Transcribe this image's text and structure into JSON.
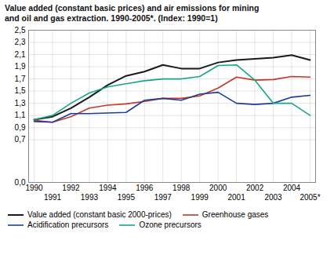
{
  "chart_data": {
    "type": "line",
    "title": "Value added (constant basic prices) and air emissions for mining",
    "subtitle": "and oil and gas extraction. 1990-2005*. (Index: 1990=1)",
    "x": [
      1990,
      1991,
      1992,
      1993,
      1994,
      1995,
      1996,
      1997,
      1998,
      1999,
      2000,
      2001,
      2002,
      2003,
      2004,
      2005
    ],
    "xlim": [
      1989.7,
      2005.3
    ],
    "xticks": [
      1990,
      1991,
      1992,
      1993,
      1994,
      1995,
      1996,
      1997,
      1998,
      1999,
      2000,
      2001,
      2002,
      2003,
      2004,
      {
        "value": 2005,
        "label": "2005*"
      }
    ],
    "ylim": [
      0.0,
      2.5
    ],
    "yticks": [
      {
        "value": 0.0,
        "label": "0,0"
      },
      {
        "value": 0.7,
        "label": "0,7"
      },
      {
        "value": 0.9,
        "label": "0,9"
      },
      {
        "value": 1.1,
        "label": "1,1"
      },
      {
        "value": 1.3,
        "label": "1,3"
      },
      {
        "value": 1.5,
        "label": "1,5"
      },
      {
        "value": 1.7,
        "label": "1,7"
      },
      {
        "value": 1.9,
        "label": "1,9"
      },
      {
        "value": 2.1,
        "label": "2,1"
      },
      {
        "value": 2.3,
        "label": "2,3"
      },
      {
        "value": 2.5,
        "label": "2,5"
      }
    ],
    "grid": true,
    "legend": "bottom",
    "series": [
      {
        "name": "Value added (constant basic 2000-prices)",
        "color": "#1a1a1a",
        "values": [
          1.03,
          1.08,
          1.22,
          1.4,
          1.6,
          1.75,
          1.82,
          1.93,
          1.87,
          1.87,
          1.97,
          2.01,
          2.03,
          2.05,
          2.09,
          2.01
        ]
      },
      {
        "name": "Greenhouse gases",
        "color": "#c0392b",
        "values": [
          1.02,
          0.99,
          1.08,
          1.22,
          1.27,
          1.29,
          1.33,
          1.38,
          1.38,
          1.42,
          1.55,
          1.73,
          1.68,
          1.69,
          1.74,
          1.73
        ]
      },
      {
        "name": "Acidification precursors",
        "color": "#1f3c99",
        "values": [
          1.0,
          0.99,
          1.13,
          1.13,
          1.14,
          1.15,
          1.35,
          1.38,
          1.35,
          1.45,
          1.48,
          1.3,
          1.28,
          1.3,
          1.4,
          1.43
        ]
      },
      {
        "name": "Ozone precursors",
        "color": "#17a589",
        "values": [
          1.03,
          1.1,
          1.3,
          1.47,
          1.57,
          1.62,
          1.67,
          1.7,
          1.7,
          1.74,
          1.92,
          1.93,
          1.68,
          1.3,
          1.3,
          1.1
        ]
      }
    ]
  }
}
